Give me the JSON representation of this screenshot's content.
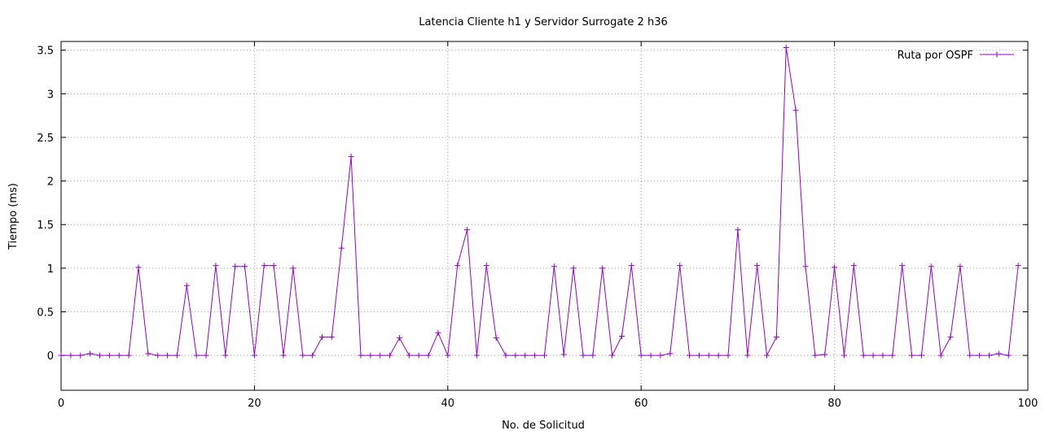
{
  "chart_data": {
    "type": "line",
    "title": "Latencia Cliente h1 y Servidor Surrogate 2 h36",
    "xlabel": "No. de Solicitud",
    "ylabel": "Tiempo (ms)",
    "xlim": [
      0,
      100
    ],
    "ylim": [
      -0.4,
      3.6
    ],
    "xticks": [
      0,
      20,
      40,
      60,
      80,
      100
    ],
    "yticks": [
      0,
      0.5,
      1,
      1.5,
      2,
      2.5,
      3,
      3.5
    ],
    "xtick_labels": [
      "0",
      "20",
      "40",
      "60",
      "80",
      "100"
    ],
    "ytick_labels": [
      "0",
      "0.5",
      "1",
      "1.5",
      "2",
      "2.5",
      "3",
      "3.5"
    ],
    "grid": true,
    "legend_position": "top-right",
    "colors": {
      "series": "#9400d3",
      "grid": "#a0a0a0",
      "axis": "#000000"
    },
    "series": [
      {
        "name": "Ruta por OSPF",
        "x": [
          0,
          1,
          2,
          3,
          4,
          5,
          6,
          7,
          8,
          9,
          10,
          11,
          12,
          13,
          14,
          15,
          16,
          17,
          18,
          19,
          20,
          21,
          22,
          23,
          24,
          25,
          26,
          27,
          28,
          29,
          30,
          31,
          32,
          33,
          34,
          35,
          36,
          37,
          38,
          39,
          40,
          41,
          42,
          43,
          44,
          45,
          46,
          47,
          48,
          49,
          50,
          51,
          52,
          53,
          54,
          55,
          56,
          57,
          58,
          59,
          60,
          61,
          62,
          63,
          64,
          65,
          66,
          67,
          68,
          69,
          70,
          71,
          72,
          73,
          74,
          75,
          76,
          77,
          78,
          79,
          80,
          81,
          82,
          83,
          84,
          85,
          86,
          87,
          88,
          89,
          90,
          91,
          92,
          93,
          94,
          95,
          96,
          97,
          98,
          99
        ],
        "values": [
          0,
          0,
          0,
          0.02,
          0,
          0,
          0,
          0,
          1.01,
          0.02,
          0,
          0,
          0,
          0.8,
          0,
          0,
          1.03,
          0,
          1.02,
          1.02,
          0,
          1.03,
          1.03,
          0,
          1.0,
          0,
          0,
          0.21,
          0.21,
          1.23,
          2.28,
          0,
          0,
          0,
          0,
          0.2,
          0,
          0,
          0,
          0.26,
          0,
          1.03,
          1.44,
          0,
          1.03,
          0.2,
          0,
          0,
          0,
          0,
          0,
          1.02,
          0.01,
          1.0,
          0,
          0,
          1.0,
          0,
          0.22,
          1.03,
          0,
          0,
          0,
          0.02,
          1.03,
          0,
          0,
          0,
          0,
          0,
          1.44,
          0,
          1.03,
          0,
          0.21,
          3.53,
          2.81,
          1.02,
          0,
          0.01,
          1.01,
          0,
          1.03,
          0,
          0,
          0,
          0,
          1.03,
          0,
          0,
          1.02,
          0,
          0.21,
          1.02,
          0,
          0,
          0,
          0.02,
          0,
          1.03
        ]
      }
    ]
  }
}
